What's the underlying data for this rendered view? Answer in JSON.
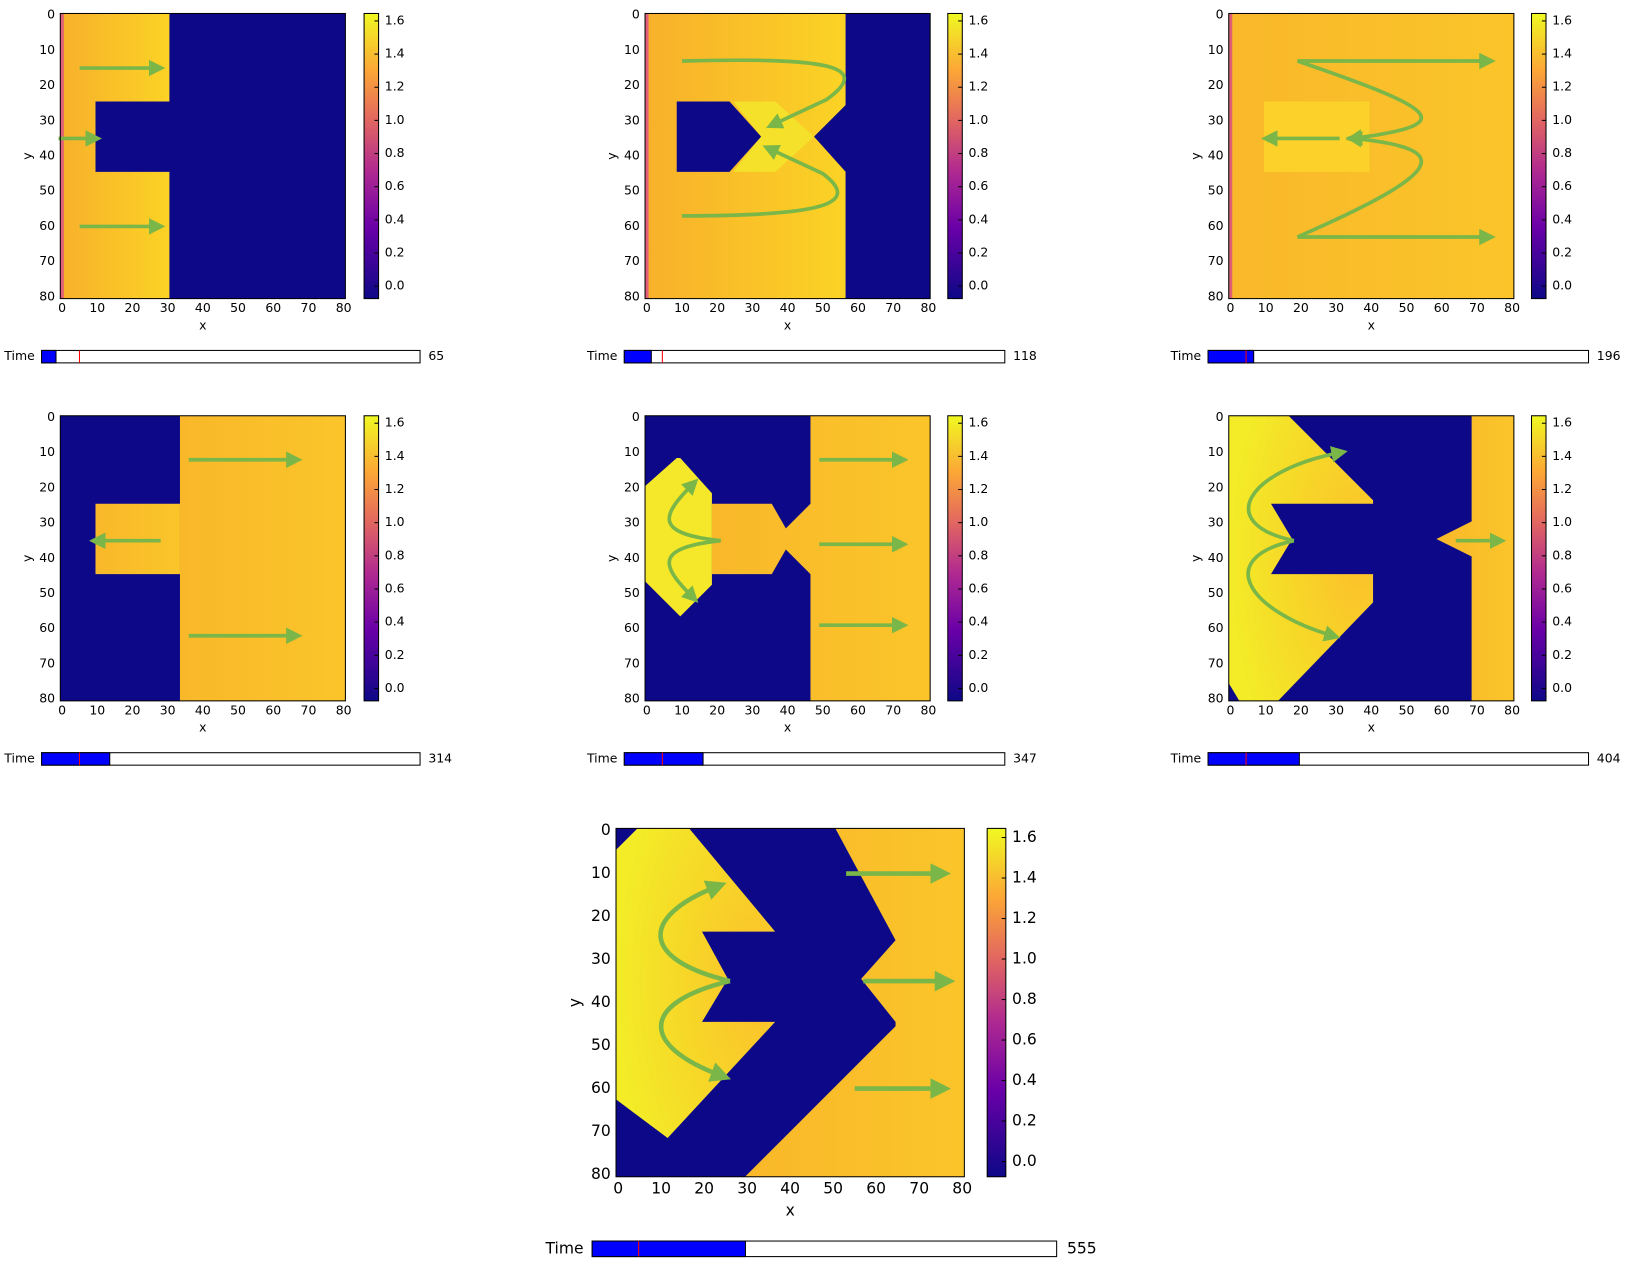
{
  "axes": {
    "xlabel": "x",
    "ylabel": "y",
    "xticks": [
      "0",
      "10",
      "20",
      "30",
      "40",
      "50",
      "60",
      "70",
      "80"
    ],
    "yticks": [
      "0",
      "10",
      "20",
      "30",
      "40",
      "50",
      "60",
      "70",
      "80"
    ],
    "colorbar_ticks": [
      "0.0",
      "0.2",
      "0.4",
      "0.6",
      "0.8",
      "1.0",
      "1.2",
      "1.4",
      "1.6"
    ]
  },
  "panels": [
    {
      "slider_label": "Time",
      "time": 65
    },
    {
      "slider_label": "Time",
      "time": 118
    },
    {
      "slider_label": "Time",
      "time": 196
    },
    {
      "slider_label": "Time",
      "time": 314
    },
    {
      "slider_label": "Time",
      "time": 347
    },
    {
      "slider_label": "Time",
      "time": 404
    },
    {
      "slider_label": "Time",
      "time": 555
    }
  ]
}
